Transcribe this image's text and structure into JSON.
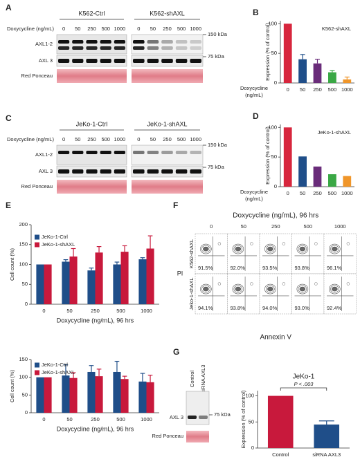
{
  "chart_data": [
    {
      "type": "bar",
      "letter": "B",
      "ylabel": "Expression (% of control)",
      "annotation": "K562-shAXL",
      "xlabel": [
        "Doxycycline",
        "(ng/mL)"
      ],
      "categories": [
        "0",
        "50",
        "250",
        "500",
        "1000"
      ],
      "values": [
        100,
        40,
        33,
        18,
        6
      ],
      "errors": [
        null,
        8,
        7,
        3,
        4
      ],
      "colors": [
        "#d7263d",
        "#1f4e89",
        "#6a2c7a",
        "#3aa845",
        "#f0962a"
      ],
      "ylim": [
        0,
        105
      ],
      "yticks": [
        0,
        50,
        100
      ]
    },
    {
      "type": "bar",
      "letter": "D",
      "ylabel": "Expression (% of control)",
      "annotation": "JeKo-1-shAXL",
      "xlabel": [
        "Doxycycline",
        "(ng/mL)"
      ],
      "categories": [
        "0",
        "50",
        "250",
        "500",
        "1000"
      ],
      "values": [
        100,
        51,
        34,
        21,
        18
      ],
      "colors": [
        "#d7263d",
        "#1f4e89",
        "#6a2c7a",
        "#3aa845",
        "#f0962a"
      ],
      "ylim": [
        0,
        105
      ],
      "yticks": [
        0,
        50,
        100
      ]
    },
    {
      "type": "bar",
      "letter": "E",
      "ylabel": "Cell count (%)",
      "xlabel": "Doxycycline (ng/mL), 96 hrs",
      "legend": "upper left",
      "categories": [
        "0",
        "50",
        "250",
        "500",
        "1000"
      ],
      "series": [
        {
          "name": "JeKo-1-Ctrl",
          "color": "#1f4e89",
          "values": [
            100,
            107,
            85,
            100,
            113
          ],
          "errors": [
            null,
            5,
            6,
            6,
            4
          ]
        },
        {
          "name": "JeKo-1-shAXL",
          "color": "#c8193c",
          "values": [
            100,
            120,
            130,
            132,
            140
          ],
          "errors": [
            null,
            20,
            15,
            15,
            32
          ]
        }
      ],
      "ylim": [
        0,
        200
      ],
      "yticks": [
        0,
        50,
        100,
        150,
        200
      ]
    },
    {
      "type": "bar",
      "ylabel": "Cell count (%)",
      "xlabel": "Doxycycline (ng/mL), 96 hrs",
      "legend": "upper left",
      "categories": [
        "0",
        "50",
        "250",
        "500",
        "1000"
      ],
      "series": [
        {
          "name": "JeKo-1-Ctrl",
          "color": "#1f4e89",
          "values": [
            100,
            105,
            115,
            115,
            88
          ],
          "errors": [
            null,
            30,
            18,
            30,
            23
          ]
        },
        {
          "name": "JeKo-1-shAXL",
          "color": "#c8193c",
          "values": [
            100,
            98,
            103,
            95,
            86
          ],
          "errors": [
            null,
            15,
            20,
            8,
            20
          ]
        }
      ],
      "ylim": [
        0,
        150
      ],
      "yticks": [
        0,
        50,
        100,
        150
      ]
    },
    {
      "type": "bar",
      "title": "JeKo-1",
      "annotation": "P < .003",
      "ylabel": "Expression (% of control)",
      "categories": [
        "Control",
        "siRNA AXL3"
      ],
      "values": [
        100,
        45
      ],
      "errors": [
        null,
        7
      ],
      "colors": [
        "#c8193c",
        "#1f4e89"
      ],
      "ylim": [
        0,
        110
      ],
      "yticks": [
        0,
        50,
        100
      ]
    }
  ],
  "blots": [
    {
      "letter": "A",
      "doxy_label": "Doxycycline (ng/mL)",
      "groups": [
        "K562-Ctrl",
        "K562-shAXL"
      ],
      "lanes": [
        "0",
        "50",
        "250",
        "500",
        "1000"
      ],
      "rows": [
        "AXL1-2",
        "AXL 3",
        "Red Ponceau"
      ],
      "markers": [
        "150 kDa",
        "75 kDa"
      ]
    },
    {
      "letter": "C",
      "doxy_label": "Doxycycline (ng/mL)",
      "groups": [
        "JeKo-1-Ctrl",
        "JeKo-1-shAXL"
      ],
      "lanes": [
        "0",
        "50",
        "250",
        "500",
        "1000"
      ],
      "rows": [
        "AXL1-2",
        "AXL 3",
        "Red Ponceau"
      ],
      "markers": [
        "150 kDa",
        "75 kDa"
      ]
    }
  ],
  "blot_g": {
    "letter": "G",
    "lanes": [
      "Control",
      "siRNA AXL3"
    ],
    "rows": [
      "AXL 3",
      "Red Ponceau"
    ],
    "marker": "75 kDa"
  },
  "flow": {
    "letter": "F",
    "title": "Doxycycline (ng/mL), 96 hrs",
    "columns": [
      "0",
      "50",
      "250",
      "500",
      "1000"
    ],
    "rows": [
      {
        "label": "K562-shAXL",
        "cells": [
          "91.5%",
          "92.0%",
          "93.5%",
          "93.8%",
          "96.1%"
        ]
      },
      {
        "label": "Jeko-1-shAXL",
        "cells": [
          "94.1%",
          "93.8%",
          "94.0%",
          "93.0%",
          "92.4%"
        ]
      }
    ],
    "ylabel": "PI",
    "xlabel": "Annexin V"
  }
}
